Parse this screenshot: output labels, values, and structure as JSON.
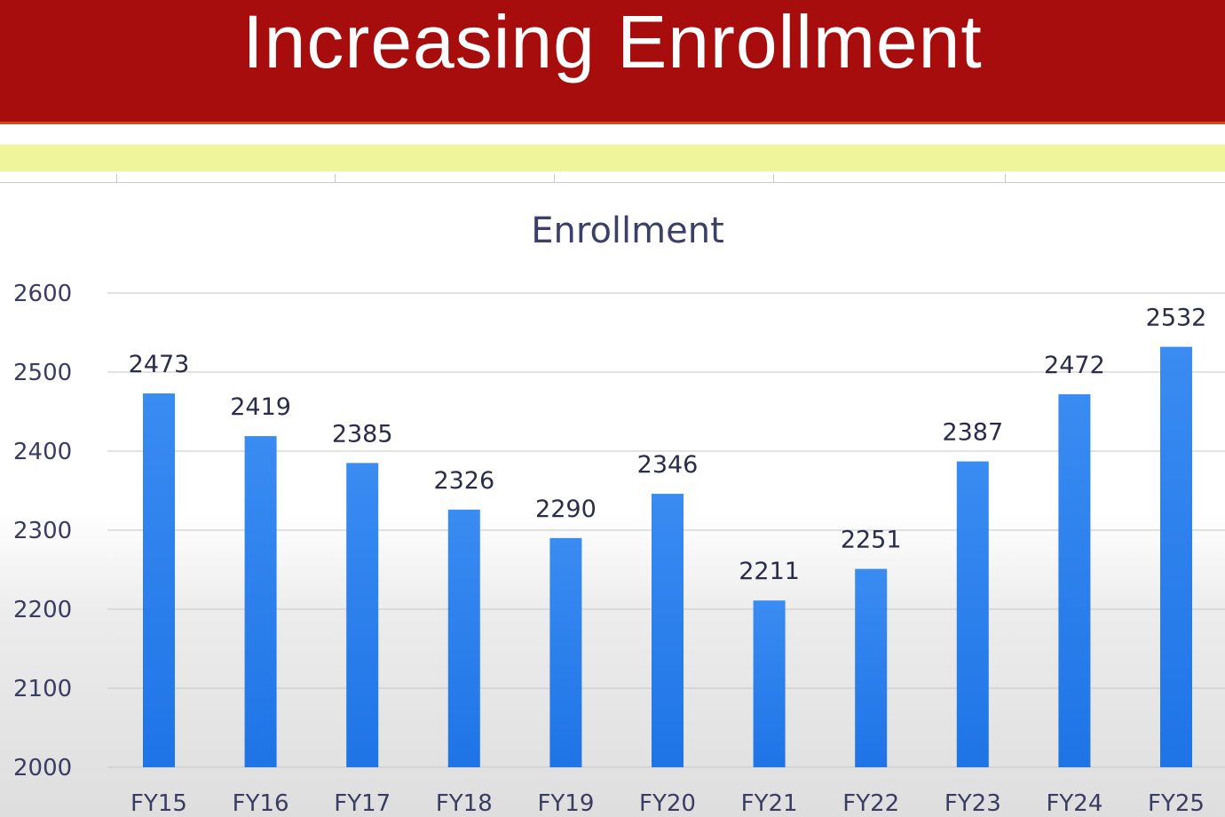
{
  "slide": {
    "title": "Increasing Enrollment"
  },
  "colors": {
    "banner": "#a80d0d",
    "bar": "#2f86f0",
    "highlight": "#eef59a"
  },
  "chart_data": {
    "type": "bar",
    "title": "Enrollment",
    "xlabel": "",
    "ylabel": "",
    "categories": [
      "FY15",
      "FY16",
      "FY17",
      "FY18",
      "FY19",
      "FY20",
      "FY21",
      "FY22",
      "FY23",
      "FY24",
      "FY25"
    ],
    "values": [
      2473,
      2419,
      2385,
      2326,
      2290,
      2346,
      2211,
      2251,
      2387,
      2472,
      2532
    ],
    "ylim": [
      2000,
      2600
    ],
    "yticks": [
      2000,
      2100,
      2200,
      2300,
      2400,
      2500,
      2600
    ],
    "grid": true,
    "data_labels": true,
    "legend": "none"
  }
}
